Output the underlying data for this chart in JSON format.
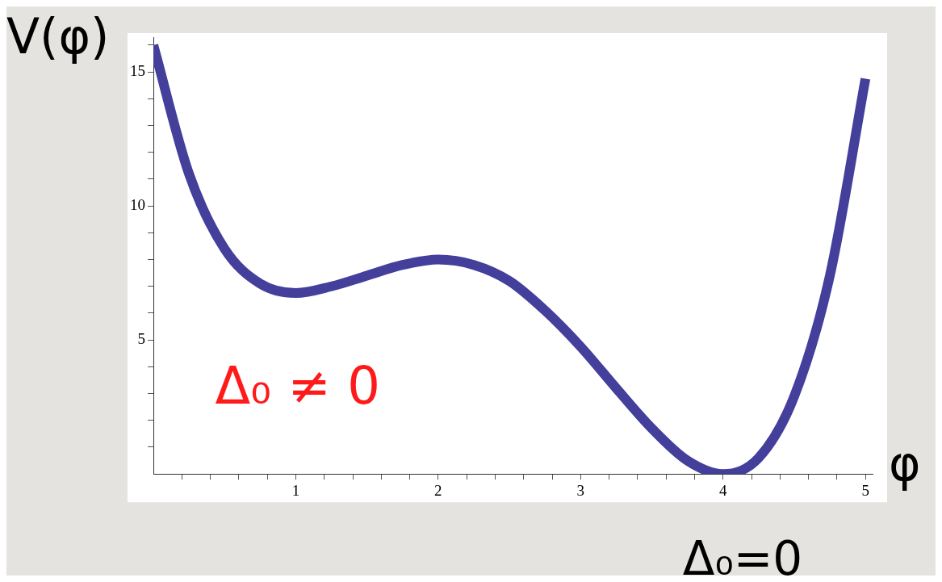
{
  "chart_data": {
    "type": "line",
    "xlabel": "φ",
    "ylabel": "V(φ)",
    "x": [
      0,
      0.25,
      0.5,
      0.75,
      1,
      1.25,
      1.5,
      1.75,
      2,
      2.25,
      2.5,
      2.75,
      3,
      3.25,
      3.5,
      3.75,
      4,
      4.25,
      4.5,
      4.75,
      5
    ],
    "series": [
      {
        "color": "#433f9b",
        "values": [
          16,
          11.2,
          8.4,
          7.1,
          6.75,
          7.0,
          7.4,
          7.8,
          8,
          7.8,
          7.2,
          6.1,
          4.75,
          3.2,
          1.7,
          0.5,
          0,
          0.6,
          2.9,
          7.4,
          14.75
        ]
      }
    ],
    "xlim": [
      0,
      5.05
    ],
    "ylim": [
      0,
      16.3
    ],
    "xticks": [
      {
        "value": 0.2,
        "label": null
      },
      {
        "value": 0.4,
        "label": null
      },
      {
        "value": 0.6,
        "label": null
      },
      {
        "value": 0.8,
        "label": null
      },
      1,
      {
        "value": 1.2,
        "label": null
      },
      {
        "value": 1.4,
        "label": null
      },
      {
        "value": 1.6,
        "label": null
      },
      {
        "value": 1.8,
        "label": null
      },
      2,
      {
        "value": 2.2,
        "label": null
      },
      {
        "value": 2.4,
        "label": null
      },
      {
        "value": 2.6,
        "label": null
      },
      {
        "value": 2.8,
        "label": null
      },
      3,
      {
        "value": 3.2,
        "label": null
      },
      {
        "value": 3.4,
        "label": null
      },
      {
        "value": 3.6,
        "label": null
      },
      {
        "value": 3.8,
        "label": null
      },
      4,
      {
        "value": 4.2,
        "label": null
      },
      {
        "value": 4.4,
        "label": null
      },
      {
        "value": 4.6,
        "label": null
      },
      {
        "value": 4.8,
        "label": null
      },
      5
    ],
    "yticks": [
      {
        "value": 1,
        "label": null
      },
      {
        "value": 2,
        "label": null
      },
      {
        "value": 3,
        "label": null
      },
      {
        "value": 4,
        "label": null
      },
      5,
      {
        "value": 6,
        "label": null
      },
      {
        "value": 7,
        "label": null
      },
      {
        "value": 8,
        "label": null
      },
      {
        "value": 9,
        "label": null
      },
      10,
      {
        "value": 11,
        "label": null
      },
      {
        "value": 12,
        "label": null
      },
      {
        "value": 13,
        "label": null
      },
      {
        "value": 14,
        "label": null
      },
      15,
      {
        "value": 16,
        "label": null
      }
    ],
    "annotations": [
      {
        "text": "Δ₀ ≠ 0",
        "x": 1,
        "y": 6.75
      },
      {
        "text": "Δ₀=0",
        "x": 4,
        "y": 0
      }
    ],
    "grid": false,
    "legend": false
  }
}
